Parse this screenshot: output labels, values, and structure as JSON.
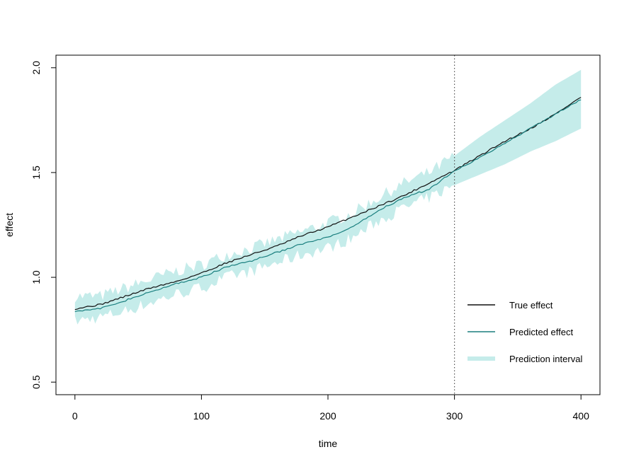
{
  "chart_data": {
    "type": "line",
    "title": "",
    "xlabel": "time",
    "ylabel": "effect",
    "xlim": [
      -15,
      415
    ],
    "ylim": [
      0.44,
      2.06
    ],
    "x_ticks": [
      0,
      100,
      200,
      300,
      400
    ],
    "y_ticks": [
      0.5,
      1.0,
      1.5,
      2.0
    ],
    "x_tick_labels": [
      "0",
      "100",
      "200",
      "300",
      "400"
    ],
    "y_tick_labels": [
      "0.5",
      "1.0",
      "1.5",
      "2.0"
    ],
    "vline": {
      "x": 300,
      "style": "dotted",
      "color": "#555555"
    },
    "grid": false,
    "legend_position": "bottom-right",
    "legend": [
      {
        "label": "True effect",
        "color": "#111111",
        "kind": "line"
      },
      {
        "label": "Predicted effect",
        "color": "#1a7f7f",
        "kind": "line"
      },
      {
        "label": "Prediction interval",
        "color": "#c5ecea",
        "kind": "band"
      }
    ],
    "series": [
      {
        "name": "True effect",
        "color": "#111111",
        "x": [
          0,
          20,
          40,
          60,
          80,
          100,
          120,
          140,
          160,
          180,
          200,
          220,
          240,
          260,
          280,
          300,
          320,
          340,
          360,
          380,
          400
        ],
        "y": [
          0.85,
          0.87,
          0.91,
          0.95,
          0.98,
          1.02,
          1.07,
          1.11,
          1.15,
          1.2,
          1.24,
          1.29,
          1.34,
          1.39,
          1.45,
          1.51,
          1.58,
          1.65,
          1.71,
          1.78,
          1.86
        ]
      },
      {
        "name": "Predicted effect",
        "color": "#1a7f7f",
        "x": [
          0,
          20,
          40,
          60,
          80,
          100,
          120,
          140,
          160,
          180,
          200,
          220,
          240,
          260,
          280,
          300,
          320,
          340,
          360,
          380,
          400
        ],
        "y": [
          0.84,
          0.85,
          0.89,
          0.93,
          0.97,
          1.0,
          1.05,
          1.08,
          1.12,
          1.16,
          1.19,
          1.24,
          1.32,
          1.38,
          1.42,
          1.51,
          1.57,
          1.64,
          1.71,
          1.78,
          1.85
        ]
      }
    ],
    "interval": {
      "name": "Prediction interval",
      "color": "#c5ecea",
      "x": [
        0,
        20,
        40,
        60,
        80,
        100,
        120,
        140,
        160,
        180,
        200,
        220,
        240,
        260,
        280,
        300,
        320,
        340,
        360,
        380,
        400
      ],
      "lower": [
        0.79,
        0.81,
        0.84,
        0.88,
        0.92,
        0.95,
        1.0,
        1.03,
        1.07,
        1.11,
        1.14,
        1.19,
        1.27,
        1.33,
        1.38,
        1.44,
        1.49,
        1.54,
        1.6,
        1.65,
        1.71
      ],
      "upper": [
        0.91,
        0.91,
        0.95,
        0.99,
        1.03,
        1.06,
        1.11,
        1.14,
        1.18,
        1.22,
        1.26,
        1.31,
        1.38,
        1.45,
        1.5,
        1.58,
        1.67,
        1.75,
        1.83,
        1.92,
        1.99
      ],
      "noise_end_x": 300
    }
  }
}
